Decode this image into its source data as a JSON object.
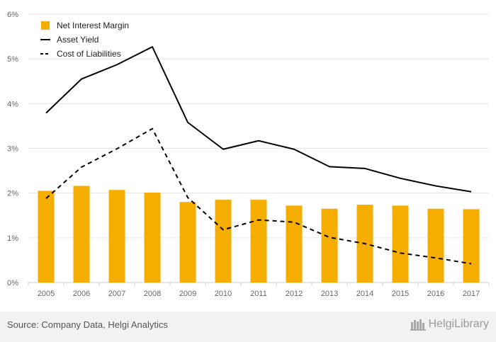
{
  "chart_data": {
    "type": "bar+line",
    "categories": [
      "2005",
      "2006",
      "2007",
      "2008",
      "2009",
      "2010",
      "2011",
      "2012",
      "2013",
      "2014",
      "2015",
      "2016",
      "2017"
    ],
    "series": [
      {
        "name": "Net Interest Margin",
        "type": "bar",
        "color": "#f5ad00",
        "values": [
          2.05,
          2.16,
          2.07,
          2.01,
          1.8,
          1.85,
          1.85,
          1.72,
          1.65,
          1.74,
          1.72,
          1.65,
          1.64
        ]
      },
      {
        "name": "Asset Yield",
        "type": "line",
        "style": "solid",
        "color": "#000000",
        "values": [
          3.79,
          4.55,
          4.87,
          5.27,
          3.58,
          2.98,
          3.17,
          2.98,
          2.59,
          2.55,
          2.33,
          2.16,
          2.03
        ]
      },
      {
        "name": "Cost of Liabilities",
        "type": "line",
        "style": "dashed",
        "color": "#000000",
        "values": [
          1.88,
          2.58,
          2.99,
          3.44,
          1.9,
          1.18,
          1.4,
          1.35,
          1.01,
          0.87,
          0.66,
          0.55,
          0.42
        ]
      }
    ],
    "yticks": [
      "0%",
      "1%",
      "2%",
      "3%",
      "4%",
      "5%",
      "6%"
    ],
    "ylim": [
      0,
      6
    ],
    "grid": true,
    "legend": "top-left"
  },
  "footer": {
    "source": "Source: Company Data, Helgi Analytics",
    "brand": "HelgiLibrary"
  }
}
